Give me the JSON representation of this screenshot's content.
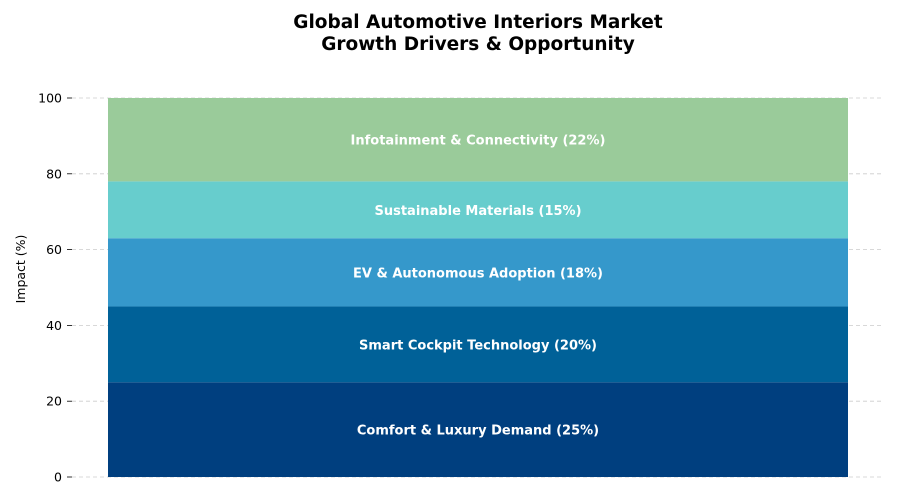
{
  "chart_data": {
    "type": "bar",
    "stacked": true,
    "title_line1": "Global Automotive Interiors Market",
    "title_line2": "Growth Drivers & Opportunity",
    "xlabel": "",
    "ylabel": "Impact (%)",
    "ylim": [
      0,
      100
    ],
    "yticks": [
      0,
      20,
      40,
      60,
      80,
      100
    ],
    "grid": true,
    "segments": [
      {
        "label": "Comfort & Luxury Demand (25%)",
        "value": 25,
        "color": "#003f7f"
      },
      {
        "label": "Smart Cockpit Technology (20%)",
        "value": 20,
        "color": "#006198"
      },
      {
        "label": "EV & Autonomous Adoption (18%)",
        "value": 18,
        "color": "#3598cb"
      },
      {
        "label": "Sustainable Materials (15%)",
        "value": 15,
        "color": "#67cdcd"
      },
      {
        "label": "Infotainment & Connectivity (22%)",
        "value": 22,
        "color": "#9acb9a"
      }
    ]
  }
}
